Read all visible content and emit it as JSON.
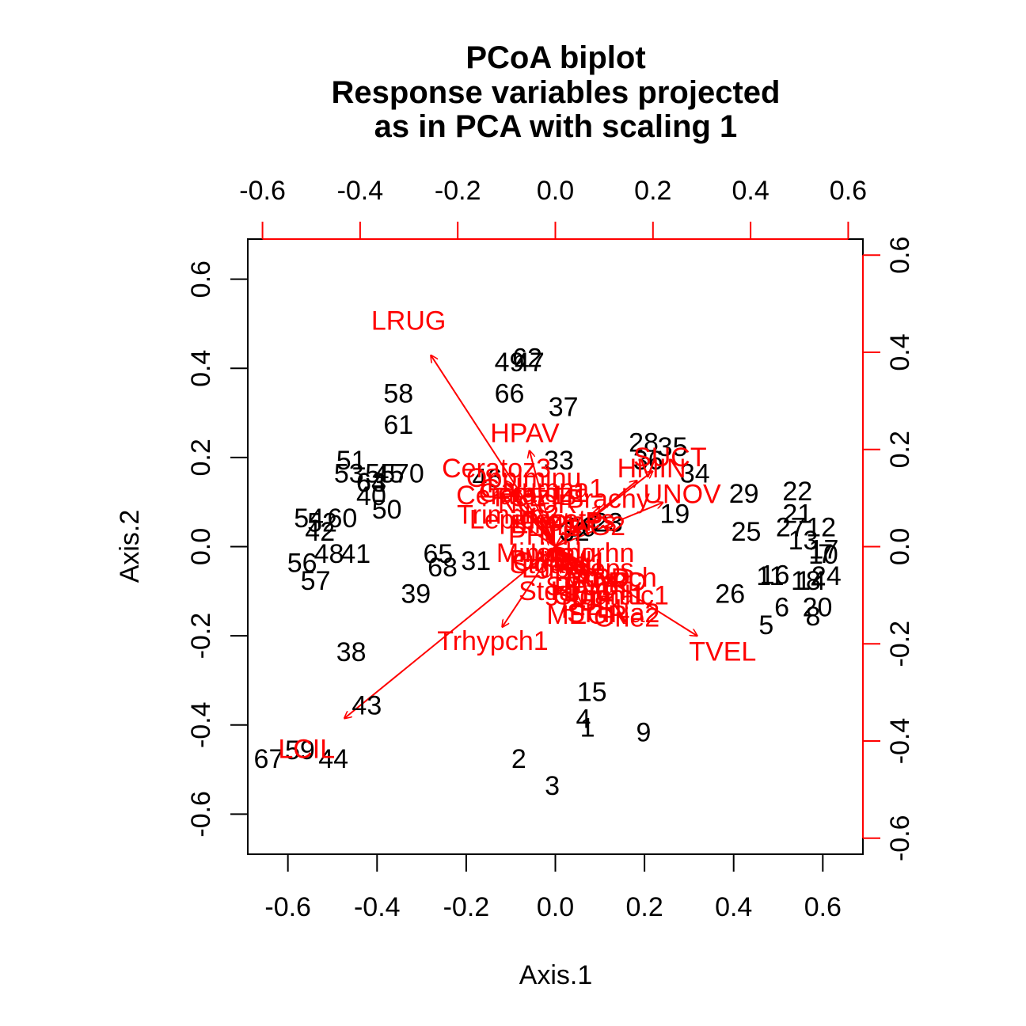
{
  "chart_data": {
    "type": "scatter",
    "title_lines": [
      "PCoA biplot",
      "Response variables projected",
      "as in PCA with scaling 1"
    ],
    "xlabel": "Axis.1",
    "ylabel": "Axis.2",
    "xlim": [
      -0.69,
      0.69
    ],
    "ylim": [
      -0.69,
      0.69
    ],
    "xticks": [
      -0.6,
      -0.4,
      -0.2,
      0.0,
      0.2,
      0.4,
      0.6
    ],
    "yticks": [
      -0.6,
      -0.4,
      -0.2,
      0.0,
      0.2,
      0.4,
      0.6
    ],
    "tick_labels": [
      "-0.6",
      "-0.4",
      "-0.2",
      "0.0",
      "0.2",
      "0.4",
      "0.6"
    ],
    "secondary_axes": {
      "color": "#ff0000",
      "ticks": [
        -0.6,
        -0.4,
        -0.2,
        0.0,
        0.2,
        0.4,
        0.6
      ],
      "tick_labels": [
        "-0.6",
        "-0.4",
        "-0.2",
        "0.0",
        "0.2",
        "0.4",
        "0.6"
      ],
      "top_x_at_primary": [
        -0.657,
        -0.438,
        -0.219,
        0.0,
        0.219,
        0.438,
        0.657
      ],
      "right_y_at_primary": [
        -0.654,
        -0.436,
        -0.218,
        0.0,
        0.218,
        0.436,
        0.654
      ]
    },
    "sites": [
      {
        "label": "1",
        "x": 0.072,
        "y": -0.407
      },
      {
        "label": "2",
        "x": -0.082,
        "y": -0.477
      },
      {
        "label": "3",
        "x": -0.007,
        "y": -0.537
      },
      {
        "label": "4",
        "x": 0.063,
        "y": -0.387
      },
      {
        "label": "5",
        "x": 0.473,
        "y": -0.177
      },
      {
        "label": "6",
        "x": 0.508,
        "y": -0.137
      },
      {
        "label": "7",
        "x": 0.606,
        "y": -0.017
      },
      {
        "label": "8",
        "x": 0.578,
        "y": -0.157
      },
      {
        "label": "9",
        "x": 0.198,
        "y": -0.417
      },
      {
        "label": "10",
        "x": 0.601,
        "y": -0.019
      },
      {
        "label": "11",
        "x": 0.482,
        "y": -0.067
      },
      {
        "label": "12",
        "x": 0.596,
        "y": 0.043
      },
      {
        "label": "13",
        "x": 0.556,
        "y": 0.013
      },
      {
        "label": "14",
        "x": 0.573,
        "y": -0.077
      },
      {
        "label": "15",
        "x": 0.082,
        "y": -0.327
      },
      {
        "label": "16",
        "x": 0.492,
        "y": -0.064
      },
      {
        "label": "17",
        "x": 0.602,
        "y": -0.007
      },
      {
        "label": "18",
        "x": 0.562,
        "y": -0.077
      },
      {
        "label": "19",
        "x": 0.268,
        "y": 0.073
      },
      {
        "label": "20",
        "x": 0.588,
        "y": -0.137
      },
      {
        "label": "21",
        "x": 0.543,
        "y": 0.073
      },
      {
        "label": "22",
        "x": 0.543,
        "y": 0.123
      },
      {
        "label": "23",
        "x": 0.118,
        "y": 0.053
      },
      {
        "label": "24",
        "x": 0.608,
        "y": -0.067
      },
      {
        "label": "25",
        "x": 0.428,
        "y": 0.033
      },
      {
        "label": "26",
        "x": 0.392,
        "y": -0.107
      },
      {
        "label": "27",
        "x": 0.528,
        "y": 0.043
      },
      {
        "label": "28",
        "x": 0.198,
        "y": 0.233
      },
      {
        "label": "29",
        "x": 0.423,
        "y": 0.118
      },
      {
        "label": "30",
        "x": 0.058,
        "y": 0.043
      },
      {
        "label": "31",
        "x": -0.178,
        "y": -0.033
      },
      {
        "label": "32",
        "x": 0.043,
        "y": 0.033
      },
      {
        "label": "33",
        "x": 0.008,
        "y": 0.193
      },
      {
        "label": "34",
        "x": 0.313,
        "y": 0.163
      },
      {
        "label": "35",
        "x": 0.263,
        "y": 0.223
      },
      {
        "label": "36",
        "x": 0.208,
        "y": 0.193
      },
      {
        "label": "37",
        "x": 0.018,
        "y": 0.313
      },
      {
        "label": "38",
        "x": -0.458,
        "y": -0.237
      },
      {
        "label": "39",
        "x": -0.313,
        "y": -0.107
      },
      {
        "label": "40",
        "x": -0.413,
        "y": 0.113
      },
      {
        "label": "41",
        "x": -0.448,
        "y": -0.017
      },
      {
        "label": "42",
        "x": -0.528,
        "y": 0.033
      },
      {
        "label": "43",
        "x": -0.423,
        "y": -0.357
      },
      {
        "label": "44",
        "x": -0.498,
        "y": -0.477
      },
      {
        "label": "45",
        "x": -0.373,
        "y": 0.163
      },
      {
        "label": "46",
        "x": -0.153,
        "y": 0.153
      },
      {
        "label": "47",
        "x": -0.058,
        "y": 0.413
      },
      {
        "label": "48",
        "x": -0.508,
        "y": -0.017
      },
      {
        "label": "49",
        "x": -0.103,
        "y": 0.413
      },
      {
        "label": "50",
        "x": -0.378,
        "y": 0.083
      },
      {
        "label": "51",
        "x": -0.458,
        "y": 0.193
      },
      {
        "label": "52",
        "x": -0.523,
        "y": 0.053
      },
      {
        "label": "53",
        "x": -0.463,
        "y": 0.163
      },
      {
        "label": "54",
        "x": -0.553,
        "y": 0.063
      },
      {
        "label": "55",
        "x": -0.393,
        "y": 0.163
      },
      {
        "label": "56",
        "x": -0.568,
        "y": -0.037
      },
      {
        "label": "57",
        "x": -0.538,
        "y": -0.077
      },
      {
        "label": "58",
        "x": -0.352,
        "y": 0.343
      },
      {
        "label": "59",
        "x": -0.573,
        "y": -0.457
      },
      {
        "label": "60",
        "x": -0.478,
        "y": 0.063
      },
      {
        "label": "61",
        "x": -0.352,
        "y": 0.273
      },
      {
        "label": "62",
        "x": -0.063,
        "y": 0.423
      },
      {
        "label": "63",
        "x": -0.413,
        "y": 0.143
      },
      {
        "label": "64",
        "x": -0.413,
        "y": 0.143
      },
      {
        "label": "65",
        "x": -0.263,
        "y": -0.017
      },
      {
        "label": "66",
        "x": -0.103,
        "y": 0.343
      },
      {
        "label": "67",
        "x": -0.643,
        "y": -0.477
      },
      {
        "label": "68",
        "x": -0.253,
        "y": -0.047
      },
      {
        "label": "70",
        "x": -0.328,
        "y": 0.163
      }
    ],
    "species": [
      {
        "label": "LRUG",
        "x": -0.279,
        "y": 0.429
      },
      {
        "label": "LCIL",
        "x": -0.473,
        "y": -0.385
      },
      {
        "label": "TVEL",
        "x": 0.318,
        "y": -0.2
      },
      {
        "label": "Trhypch1",
        "x": -0.119,
        "y": -0.18
      },
      {
        "label": "SUCT",
        "x": 0.218,
        "y": 0.169
      },
      {
        "label": "UNOV",
        "x": 0.241,
        "y": 0.099
      },
      {
        "label": "HMIN",
        "x": 0.183,
        "y": 0.148
      },
      {
        "label": "HPAV",
        "x": -0.058,
        "y": 0.215
      },
      {
        "label": "Ceratoz3",
        "x": -0.112,
        "y": 0.148
      },
      {
        "label": "Oppiminu",
        "x": -0.06,
        "y": 0.13
      },
      {
        "label": "Brachy",
        "x": 0.1,
        "y": 0.09
      },
      {
        "label": "Trimalc2",
        "x": -0.09,
        "y": 0.06
      },
      {
        "label": "PHTH",
        "x": -0.02,
        "y": 0.02
      },
      {
        "label": "MEGR",
        "x": 0.06,
        "y": -0.13
      },
      {
        "label": "RARD",
        "x": 0.07,
        "y": -0.06
      }
    ],
    "cluster_labels": [
      {
        "text": "Galumna1",
        "x": -0.03,
        "y": 0.13
      },
      {
        "text": "Ceratoz1",
        "x": -0.05,
        "y": 0.12
      },
      {
        "text": "FSET",
        "x": -0.06,
        "y": 0.11
      },
      {
        "text": "NCOR",
        "x": -0.04,
        "y": 0.095
      },
      {
        "text": "Ceratoz1",
        "x": -0.1,
        "y": 0.115
      },
      {
        "text": "Lepidozetes",
        "x": -0.03,
        "y": 0.06
      },
      {
        "text": "ProtoPs",
        "x": 0.03,
        "y": 0.055
      },
      {
        "text": "ElnPL",
        "x": -0.02,
        "y": 0.05
      },
      {
        "text": "PLAG2",
        "x": 0.06,
        "y": 0.045
      },
      {
        "text": "Minigalu",
        "x": -0.02,
        "y": -0.015
      },
      {
        "text": "Isoborhn",
        "x": 0.06,
        "y": -0.015
      },
      {
        "text": "PWIL",
        "x": -0.03,
        "y": -0.03
      },
      {
        "text": "Oribatl1",
        "x": 0.01,
        "y": -0.035
      },
      {
        "text": "Stganlu",
        "x": 0.0,
        "y": -0.04
      },
      {
        "text": "Eupelops",
        "x": 0.05,
        "y": -0.05
      },
      {
        "text": "RARD",
        "x": 0.12,
        "y": -0.08
      },
      {
        "text": "Stganlu",
        "x": 0.02,
        "y": -0.1
      },
      {
        "text": "SSUB",
        "x": 0.06,
        "y": -0.09
      },
      {
        "text": "Stganl1",
        "x": 0.1,
        "y": -0.11
      },
      {
        "text": "PPEL",
        "x": 0.09,
        "y": -0.14
      },
      {
        "text": "Trimalc1",
        "x": 0.14,
        "y": -0.11
      },
      {
        "text": "SPINa2",
        "x": 0.13,
        "y": -0.15
      },
      {
        "text": "Orie2",
        "x": 0.16,
        "y": -0.16
      },
      {
        "text": "HPICT",
        "x": 0.08,
        "y": -0.1
      },
      {
        "text": "Trhypch",
        "x": 0.12,
        "y": -0.07
      }
    ]
  }
}
